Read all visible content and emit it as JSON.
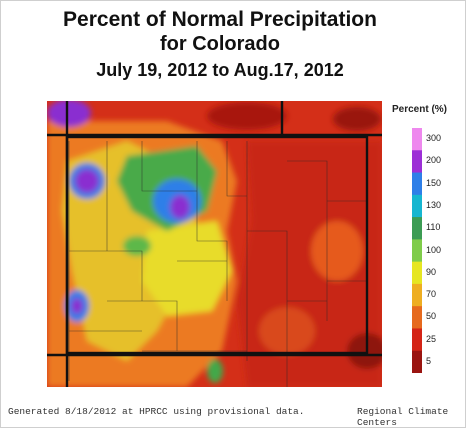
{
  "title": {
    "line1": "Percent of Normal Precipitation",
    "line2": "for Colorado",
    "line3": "July 19, 2012 to Aug.17, 2012"
  },
  "legend": {
    "title": "Percent (%)",
    "bins": [
      {
        "label": "300",
        "color": "#ee88ee"
      },
      {
        "label": "200",
        "color": "#9c2fd6"
      },
      {
        "label": "150",
        "color": "#2e7fe8"
      },
      {
        "label": "130",
        "color": "#16b6d0"
      },
      {
        "label": "110",
        "color": "#3c9c54"
      },
      {
        "label": "100",
        "color": "#7fcc4a"
      },
      {
        "label": "90",
        "color": "#e6e622"
      },
      {
        "label": "70",
        "color": "#eeae22"
      },
      {
        "label": "50",
        "color": "#e66a1e"
      },
      {
        "label": "25",
        "color": "#d42416"
      },
      {
        "label": "5",
        "color": "#9a1410"
      }
    ]
  },
  "footer": {
    "left": "Generated 8/18/2012 at HPRCC using provisional data.",
    "right": "Regional Climate Centers"
  }
}
